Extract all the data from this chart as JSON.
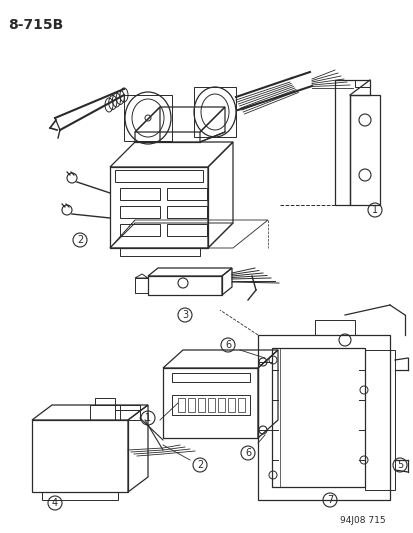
{
  "title_label": "8-715B",
  "footer_label": "94J08 715",
  "bg_color": "#ffffff",
  "line_color": "#2a2a2a",
  "fig_width": 4.14,
  "fig_height": 5.33,
  "dpi": 100
}
